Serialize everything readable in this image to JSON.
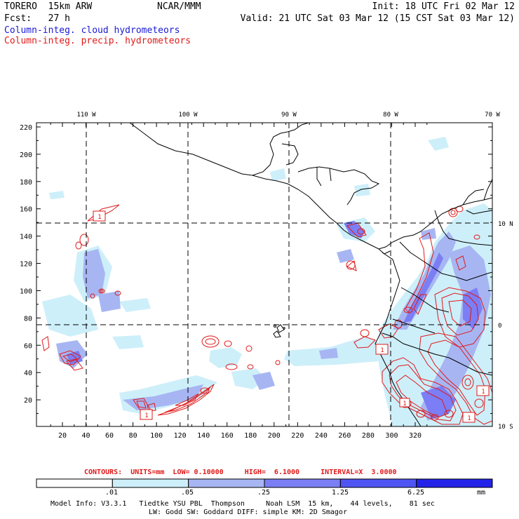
{
  "header": {
    "model": "TORERO  15km ARW",
    "org": "NCAR/MMM",
    "init": "Init: 18 UTC Fri 02 Mar 12",
    "fcst": "Fcst:   27 h",
    "valid": "Valid: 21 UTC Sat 03 Mar 12 (15 CST Sat 03 Mar 12)",
    "field1": "Column-integ. cloud hydrometeors",
    "field2": "Column-integ. precip. hydrometeors"
  },
  "map": {
    "top_lon_labels": [
      "110 W",
      "100 W",
      "90 W",
      "80 W",
      "70 W"
    ],
    "right_lat_labels": [
      "10 N",
      "0",
      "10 S"
    ],
    "y_ticks": [
      "220",
      "200",
      "180",
      "160",
      "140",
      "120",
      "100",
      "80",
      "60",
      "40",
      "20"
    ],
    "x_ticks": [
      "20",
      "40",
      "60",
      "80",
      "100",
      "120",
      "140",
      "160",
      "180",
      "200",
      "220",
      "240",
      "260",
      "280",
      "300",
      "320"
    ],
    "contour_boxes": [
      "1",
      "1",
      "1",
      "1",
      "1",
      "1"
    ]
  },
  "contours_info": {
    "label": "CONTOURS:  UNITS=mm  LOW= 0.10000     HIGH=  6.1000     INTERVAL=X  3.0000"
  },
  "colorbar": {
    "levels": [
      ".01",
      ".05",
      ".25",
      "1.25",
      "6.25"
    ],
    "unit": "mm",
    "colors": [
      "#ffffff",
      "#cdeffa",
      "#a7b6f2",
      "#7b7ef4",
      "#4f55f2",
      "#2222e8"
    ]
  },
  "footer": {
    "line1": "Model Info: V3.3.1   Tiedtke YSU PBL  Thompson     Noah LSM  15 km,    44 levels,    81 sec",
    "line2": "LW: Godd SW: Goddard DIFF: simple KM: 2D Smagor"
  },
  "colors": {
    "cloud_label": "#1a1ad6",
    "precip_label": "#e01a1a",
    "coast": "#000000",
    "contour": "#e01a1a"
  }
}
